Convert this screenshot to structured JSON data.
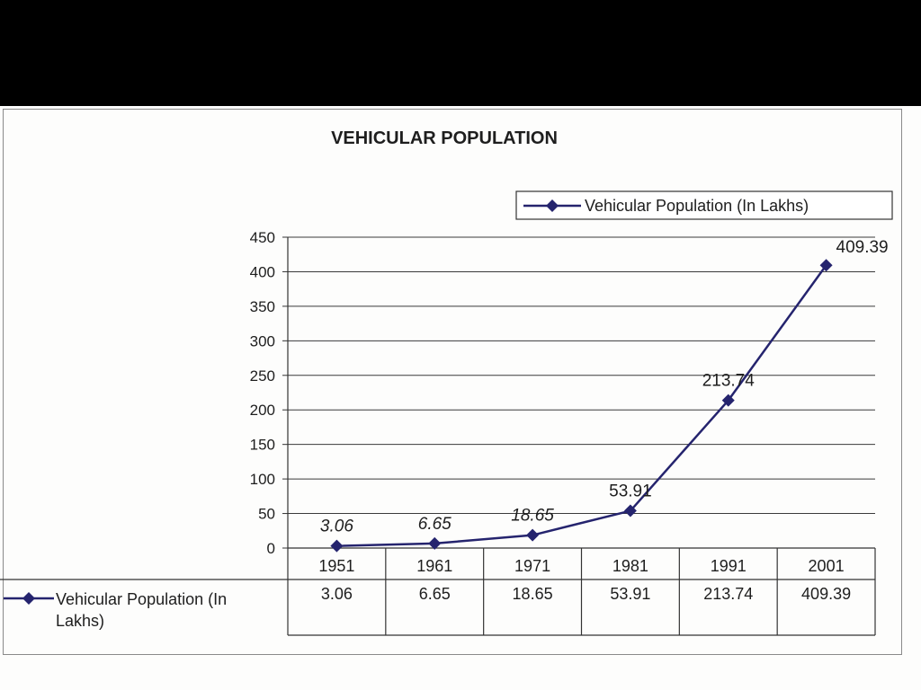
{
  "chart_data": {
    "type": "line",
    "title": "VEHICULAR POPULATION",
    "categories": [
      "1951",
      "1961",
      "1971",
      "1981",
      "1991",
      "2001"
    ],
    "series": [
      {
        "name": "Vehicular Population (In Lakhs)",
        "values": [
          3.06,
          6.65,
          18.65,
          53.91,
          213.74,
          409.39
        ],
        "value_labels": [
          "3.06",
          "6.65",
          "18.65",
          "53.91",
          "213.74",
          "409.39"
        ]
      }
    ],
    "ylim": [
      0,
      450
    ],
    "yticks": [
      "0",
      "50",
      "100",
      "150",
      "200",
      "250",
      "300",
      "350",
      "400",
      "450"
    ],
    "grid": true,
    "legend": "top-right",
    "data_table": true,
    "table_series_label": [
      "Vehicular Population (In",
      "Lakhs)"
    ],
    "colors": {
      "series": "#25246e",
      "grid": "#3a3a3a",
      "axis": "#333333"
    }
  }
}
